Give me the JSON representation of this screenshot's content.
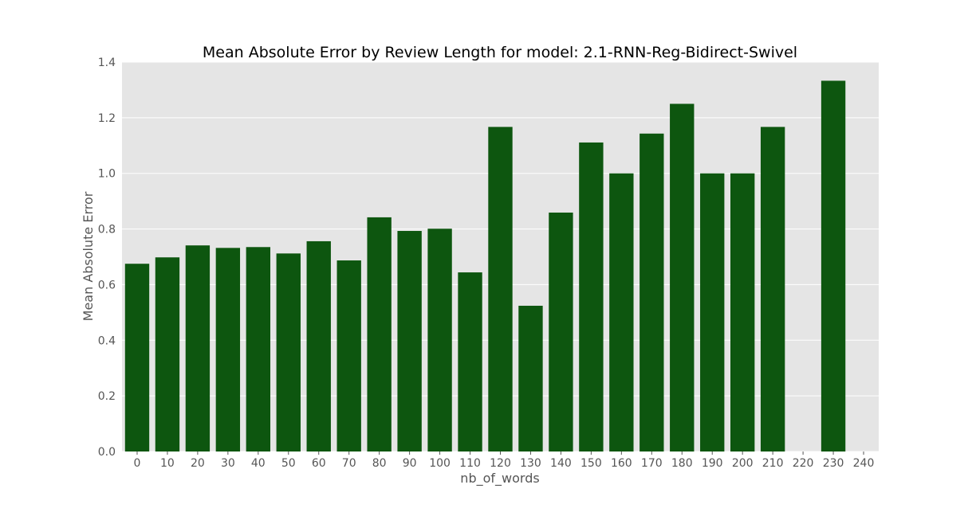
{
  "chart_data": {
    "type": "bar",
    "title": "Mean Absolute Error by Review Length for model: 2.1-RNN-Reg-Bidirect-Swivel",
    "xlabel": "nb_of_words",
    "ylabel": "Mean Absolute Error",
    "categories": [
      "0",
      "10",
      "20",
      "30",
      "40",
      "50",
      "60",
      "70",
      "80",
      "90",
      "100",
      "110",
      "120",
      "130",
      "140",
      "150",
      "160",
      "170",
      "180",
      "190",
      "200",
      "210",
      "220",
      "230",
      "240"
    ],
    "values": [
      0.675,
      0.698,
      0.741,
      0.732,
      0.735,
      0.712,
      0.756,
      0.687,
      0.842,
      0.793,
      0.801,
      0.644,
      1.167,
      0.524,
      0.859,
      1.111,
      1.0,
      1.143,
      1.25,
      1.0,
      1.0,
      1.167,
      null,
      1.333,
      null
    ],
    "ylim": [
      0,
      1.4
    ],
    "yticks": [
      "0.0",
      "0.2",
      "0.4",
      "0.6",
      "0.8",
      "1.0",
      "1.2",
      "1.4"
    ],
    "grid": true,
    "colors": {
      "bar": "#0d560f",
      "plot_background": "#e5e5e5",
      "grid": "#ffffff"
    }
  }
}
